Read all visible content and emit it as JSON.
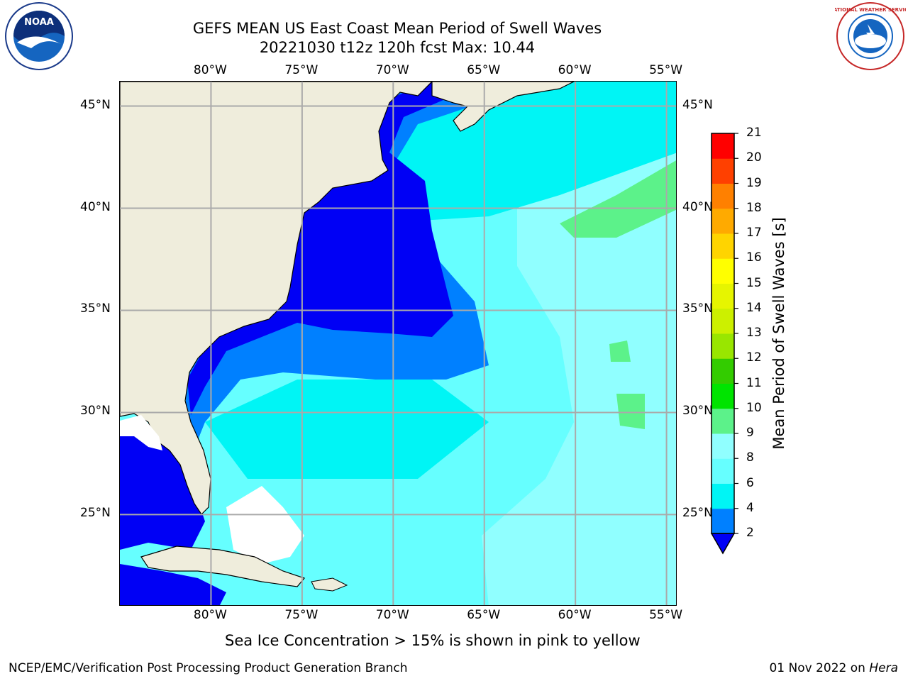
{
  "header": {
    "title_line1": "GEFS MEAN US East Coast Mean Period of Swell Waves",
    "title_line2": "20221030 t12z 120h fcst   Max: 10.44"
  },
  "logos": {
    "left": {
      "text": "NOAA",
      "name": "noaa-logo"
    },
    "right": {
      "text": "NATIONAL WEATHER SERVICE",
      "name": "nws-logo"
    }
  },
  "map": {
    "lon_labels": [
      "80°W",
      "75°W",
      "70°W",
      "65°W",
      "60°W",
      "55°W"
    ],
    "lat_labels": [
      "45°N",
      "40°N",
      "35°N",
      "30°N",
      "25°N"
    ],
    "lon_values": [
      -80,
      -75,
      -70,
      -65,
      -60,
      -55
    ],
    "lat_values": [
      45,
      40,
      35,
      30,
      25
    ],
    "lon_range": [
      -85,
      -54.4
    ],
    "lat_range": [
      20.5,
      46.2
    ],
    "grid": true,
    "colors": {
      "land": "#efeddc",
      "band_2_4": "#0000f5",
      "band_4_6": "#0080ff",
      "band_6_8": "#00f5f5",
      "band_8_9": "#66ffff",
      "band_9_10": "#90ffff",
      "band_10_11": "#5cf28a",
      "grid": "#aaaaaa"
    }
  },
  "colorbar": {
    "label": "Mean Period of Swell Waves [s]",
    "ticks": [
      "2",
      "4",
      "6",
      "8",
      "9",
      "10",
      "11",
      "12",
      "13",
      "14",
      "15",
      "16",
      "17",
      "18",
      "19",
      "20",
      "21"
    ],
    "tick_values": [
      2,
      4,
      6,
      8,
      9,
      10,
      11,
      12,
      13,
      14,
      15,
      16,
      17,
      18,
      19,
      20,
      21
    ],
    "colors": [
      "#0000f5",
      "#0080ff",
      "#00f5f5",
      "#66ffff",
      "#90ffff",
      "#5cf28a",
      "#00e400",
      "#33cc00",
      "#99e600",
      "#ccf000",
      "#e6f500",
      "#ffff00",
      "#ffd400",
      "#ffaa00",
      "#ff8000",
      "#ff4000",
      "#ff0000"
    ],
    "extend": "min"
  },
  "note": "Sea Ice Concentration > 15% is shown in pink to yellow",
  "footer": {
    "left": "NCEP/EMC/Verification Post Processing Product Generation Branch",
    "right_date": "01 Nov 2022 on ",
    "right_host": "Hera"
  }
}
